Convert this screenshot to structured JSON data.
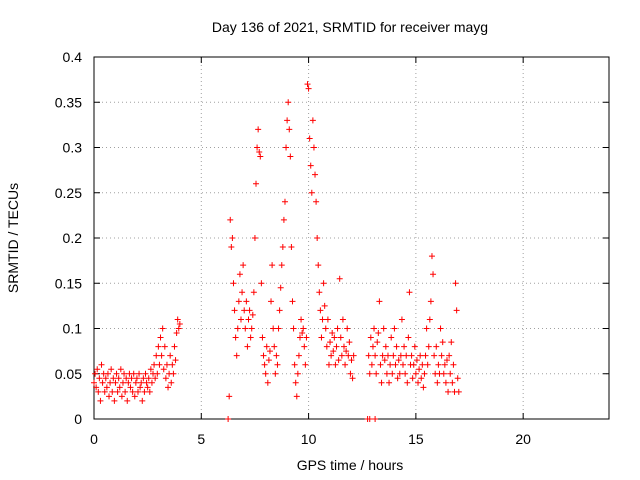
{
  "chart_data": {
    "type": "scatter",
    "title": "Day 136 of 2021, SRMTID for receiver mayg",
    "xlabel": "GPS time / hours",
    "ylabel": "SRMTID / TECUs",
    "xlim": [
      0,
      24
    ],
    "ylim": [
      0,
      0.4
    ],
    "xticks": [
      0,
      5,
      10,
      15,
      20
    ],
    "xtick_labels": [
      "0",
      "5",
      "10",
      "15",
      "20"
    ],
    "yticks": [
      0,
      0.05,
      0.1,
      0.15,
      0.2,
      0.25,
      0.3,
      0.35,
      0.4
    ],
    "ytick_labels": [
      "0",
      "0.05",
      "0.1",
      "0.15",
      "0.2",
      "0.25",
      "0.3",
      "0.35",
      "0.4"
    ],
    "grid": true,
    "marker": "+",
    "color": "#ff0000",
    "series": [
      {
        "name": "SRMTID",
        "points": [
          [
            0.0,
            0.04
          ],
          [
            0.05,
            0.05
          ],
          [
            0.1,
            0.035
          ],
          [
            0.15,
            0.055
          ],
          [
            0.2,
            0.03
          ],
          [
            0.25,
            0.045
          ],
          [
            0.3,
            0.02
          ],
          [
            0.35,
            0.06
          ],
          [
            0.4,
            0.04
          ],
          [
            0.45,
            0.05
          ],
          [
            0.5,
            0.03
          ],
          [
            0.55,
            0.045
          ],
          [
            0.6,
            0.035
          ],
          [
            0.65,
            0.05
          ],
          [
            0.7,
            0.025
          ],
          [
            0.75,
            0.04
          ],
          [
            0.8,
            0.055
          ],
          [
            0.85,
            0.03
          ],
          [
            0.9,
            0.045
          ],
          [
            0.95,
            0.02
          ],
          [
            1.0,
            0.04
          ],
          [
            1.05,
            0.05
          ],
          [
            1.1,
            0.03
          ],
          [
            1.15,
            0.045
          ],
          [
            1.2,
            0.035
          ],
          [
            1.25,
            0.055
          ],
          [
            1.3,
            0.025
          ],
          [
            1.35,
            0.04
          ],
          [
            1.4,
            0.05
          ],
          [
            1.45,
            0.03
          ],
          [
            1.5,
            0.045
          ],
          [
            1.55,
            0.02
          ],
          [
            1.6,
            0.04
          ],
          [
            1.65,
            0.05
          ],
          [
            1.7,
            0.035
          ],
          [
            1.75,
            0.045
          ],
          [
            1.8,
            0.03
          ],
          [
            1.85,
            0.05
          ],
          [
            1.9,
            0.025
          ],
          [
            1.95,
            0.04
          ],
          [
            2.0,
            0.045
          ],
          [
            2.05,
            0.03
          ],
          [
            2.1,
            0.05
          ],
          [
            2.15,
            0.035
          ],
          [
            2.2,
            0.04
          ],
          [
            2.25,
            0.02
          ],
          [
            2.3,
            0.045
          ],
          [
            2.35,
            0.03
          ],
          [
            2.4,
            0.05
          ],
          [
            2.45,
            0.04
          ],
          [
            2.5,
            0.035
          ],
          [
            2.55,
            0.045
          ],
          [
            2.6,
            0.03
          ],
          [
            2.65,
            0.055
          ],
          [
            2.7,
            0.04
          ],
          [
            2.75,
            0.05
          ],
          [
            2.8,
            0.06
          ],
          [
            2.85,
            0.045
          ],
          [
            2.9,
            0.07
          ],
          [
            2.95,
            0.05
          ],
          [
            3.0,
            0.08
          ],
          [
            3.05,
            0.06
          ],
          [
            3.1,
            0.09
          ],
          [
            3.15,
            0.07
          ],
          [
            3.2,
            0.1
          ],
          [
            3.25,
            0.055
          ],
          [
            3.3,
            0.08
          ],
          [
            3.35,
            0.045
          ],
          [
            3.4,
            0.06
          ],
          [
            3.45,
            0.035
          ],
          [
            3.5,
            0.05
          ],
          [
            3.55,
            0.07
          ],
          [
            3.6,
            0.04
          ],
          [
            3.65,
            0.06
          ],
          [
            3.7,
            0.05
          ],
          [
            3.75,
            0.08
          ],
          [
            3.8,
            0.065
          ],
          [
            3.85,
            0.095
          ],
          [
            3.9,
            0.11
          ],
          [
            3.95,
            0.1
          ],
          [
            4.0,
            0.105
          ],
          [
            6.25,
            0.0
          ],
          [
            6.3,
            0.025
          ],
          [
            6.35,
            0.22
          ],
          [
            6.4,
            0.19
          ],
          [
            6.45,
            0.2
          ],
          [
            6.5,
            0.15
          ],
          [
            6.55,
            0.12
          ],
          [
            6.6,
            0.09
          ],
          [
            6.65,
            0.07
          ],
          [
            6.7,
            0.1
          ],
          [
            6.75,
            0.13
          ],
          [
            6.8,
            0.16
          ],
          [
            6.85,
            0.11
          ],
          [
            6.9,
            0.14
          ],
          [
            6.95,
            0.17
          ],
          [
            7.0,
            0.12
          ],
          [
            7.05,
            0.1
          ],
          [
            7.1,
            0.13
          ],
          [
            7.15,
            0.08
          ],
          [
            7.2,
            0.11
          ],
          [
            7.25,
            0.12
          ],
          [
            7.3,
            0.09
          ],
          [
            7.35,
            0.1
          ],
          [
            7.4,
            0.115
          ],
          [
            7.45,
            0.14
          ],
          [
            7.5,
            0.2
          ],
          [
            7.55,
            0.26
          ],
          [
            7.6,
            0.3
          ],
          [
            7.65,
            0.32
          ],
          [
            7.7,
            0.295
          ],
          [
            7.75,
            0.29
          ],
          [
            7.8,
            0.15
          ],
          [
            7.85,
            0.09
          ],
          [
            7.9,
            0.07
          ],
          [
            7.95,
            0.06
          ],
          [
            8.0,
            0.05
          ],
          [
            8.05,
            0.08
          ],
          [
            8.1,
            0.04
          ],
          [
            8.15,
            0.065
          ],
          [
            8.2,
            0.075
          ],
          [
            8.25,
            0.13
          ],
          [
            8.3,
            0.17
          ],
          [
            8.35,
            0.1
          ],
          [
            8.4,
            0.08
          ],
          [
            8.45,
            0.05
          ],
          [
            8.5,
            0.07
          ],
          [
            8.55,
            0.06
          ],
          [
            8.6,
            0.1
          ],
          [
            8.65,
            0.12
          ],
          [
            8.7,
            0.145
          ],
          [
            8.75,
            0.17
          ],
          [
            8.8,
            0.19
          ],
          [
            8.85,
            0.22
          ],
          [
            8.9,
            0.24
          ],
          [
            8.95,
            0.3
          ],
          [
            9.0,
            0.33
          ],
          [
            9.05,
            0.35
          ],
          [
            9.1,
            0.32
          ],
          [
            9.15,
            0.29
          ],
          [
            9.2,
            0.19
          ],
          [
            9.25,
            0.13
          ],
          [
            9.3,
            0.1
          ],
          [
            9.35,
            0.06
          ],
          [
            9.4,
            0.04
          ],
          [
            9.45,
            0.025
          ],
          [
            9.5,
            0.05
          ],
          [
            9.55,
            0.07
          ],
          [
            9.6,
            0.09
          ],
          [
            9.65,
            0.11
          ],
          [
            9.7,
            0.095
          ],
          [
            9.75,
            0.1
          ],
          [
            9.8,
            0.08
          ],
          [
            9.85,
            0.06
          ],
          [
            9.9,
            0.09
          ],
          [
            9.95,
            0.37
          ],
          [
            10.0,
            0.365
          ],
          [
            10.05,
            0.31
          ],
          [
            10.1,
            0.28
          ],
          [
            10.15,
            0.25
          ],
          [
            10.2,
            0.33
          ],
          [
            10.25,
            0.3
          ],
          [
            10.3,
            0.27
          ],
          [
            10.35,
            0.24
          ],
          [
            10.4,
            0.2
          ],
          [
            10.45,
            0.17
          ],
          [
            10.5,
            0.14
          ],
          [
            10.55,
            0.12
          ],
          [
            10.6,
            0.09
          ],
          [
            10.65,
            0.11
          ],
          [
            10.7,
            0.15
          ],
          [
            10.75,
            0.125
          ],
          [
            10.8,
            0.1
          ],
          [
            10.85,
            0.08
          ],
          [
            10.9,
            0.11
          ],
          [
            10.95,
            0.06
          ],
          [
            11.0,
            0.085
          ],
          [
            11.05,
            0.07
          ],
          [
            11.1,
            0.095
          ],
          [
            11.15,
            0.075
          ],
          [
            11.2,
            0.09
          ],
          [
            11.25,
            0.06
          ],
          [
            11.3,
            0.08
          ],
          [
            11.35,
            0.1
          ],
          [
            11.4,
            0.065
          ],
          [
            11.45,
            0.155
          ],
          [
            11.5,
            0.09
          ],
          [
            11.55,
            0.07
          ],
          [
            11.6,
            0.11
          ],
          [
            11.65,
            0.08
          ],
          [
            11.7,
            0.06
          ],
          [
            11.75,
            0.075
          ],
          [
            11.8,
            0.1
          ],
          [
            11.85,
            0.07
          ],
          [
            11.9,
            0.085
          ],
          [
            11.95,
            0.05
          ],
          [
            12.0,
            0.065
          ],
          [
            12.05,
            0.045
          ],
          [
            12.1,
            0.07
          ],
          [
            12.75,
            0.0
          ],
          [
            12.85,
            0.0
          ],
          [
            13.1,
            0.0
          ],
          [
            12.8,
            0.07
          ],
          [
            12.85,
            0.05
          ],
          [
            12.9,
            0.09
          ],
          [
            12.95,
            0.06
          ],
          [
            13.0,
            0.08
          ],
          [
            13.05,
            0.1
          ],
          [
            13.1,
            0.07
          ],
          [
            13.15,
            0.05
          ],
          [
            13.2,
            0.085
          ],
          [
            13.25,
            0.095
          ],
          [
            13.3,
            0.13
          ],
          [
            13.35,
            0.06
          ],
          [
            13.4,
            0.04
          ],
          [
            13.45,
            0.07
          ],
          [
            13.5,
            0.1
          ],
          [
            13.55,
            0.065
          ],
          [
            13.6,
            0.08
          ],
          [
            13.65,
            0.05
          ],
          [
            13.7,
            0.07
          ],
          [
            13.75,
            0.04
          ],
          [
            13.8,
            0.06
          ],
          [
            13.85,
            0.09
          ],
          [
            13.9,
            0.05
          ],
          [
            13.95,
            0.07
          ],
          [
            14.0,
            0.1
          ],
          [
            14.05,
            0.06
          ],
          [
            14.1,
            0.08
          ],
          [
            14.15,
            0.045
          ],
          [
            14.2,
            0.065
          ],
          [
            14.25,
            0.05
          ],
          [
            14.3,
            0.07
          ],
          [
            14.35,
            0.11
          ],
          [
            14.4,
            0.06
          ],
          [
            14.45,
            0.08
          ],
          [
            14.5,
            0.05
          ],
          [
            14.55,
            0.07
          ],
          [
            14.6,
            0.04
          ],
          [
            14.65,
            0.09
          ],
          [
            14.7,
            0.14
          ],
          [
            14.75,
            0.06
          ],
          [
            14.8,
            0.07
          ],
          [
            14.85,
            0.045
          ],
          [
            14.9,
            0.06
          ],
          [
            14.95,
            0.08
          ],
          [
            15.0,
            0.05
          ],
          [
            15.05,
            0.065
          ],
          [
            15.1,
            0.04
          ],
          [
            15.15,
            0.055
          ],
          [
            15.2,
            0.07
          ],
          [
            15.25,
            0.045
          ],
          [
            15.3,
            0.06
          ],
          [
            15.35,
            0.035
          ],
          [
            15.4,
            0.05
          ],
          [
            15.45,
            0.07
          ],
          [
            15.5,
            0.1
          ],
          [
            15.55,
            0.06
          ],
          [
            15.6,
            0.08
          ],
          [
            15.65,
            0.11
          ],
          [
            15.7,
            0.13
          ],
          [
            15.75,
            0.18
          ],
          [
            15.8,
            0.16
          ],
          [
            15.85,
            0.07
          ],
          [
            15.9,
            0.05
          ],
          [
            15.95,
            0.08
          ],
          [
            16.0,
            0.04
          ],
          [
            16.05,
            0.06
          ],
          [
            16.1,
            0.05
          ],
          [
            16.15,
            0.1
          ],
          [
            16.2,
            0.07
          ],
          [
            16.25,
            0.085
          ],
          [
            16.3,
            0.05
          ],
          [
            16.35,
            0.06
          ],
          [
            16.4,
            0.04
          ],
          [
            16.45,
            0.065
          ],
          [
            16.5,
            0.03
          ],
          [
            16.55,
            0.07
          ],
          [
            16.6,
            0.05
          ],
          [
            16.65,
            0.085
          ],
          [
            16.7,
            0.04
          ],
          [
            16.75,
            0.06
          ],
          [
            16.8,
            0.03
          ],
          [
            16.85,
            0.15
          ],
          [
            16.9,
            0.12
          ],
          [
            16.95,
            0.045
          ],
          [
            17.0,
            0.03
          ]
        ]
      }
    ]
  }
}
